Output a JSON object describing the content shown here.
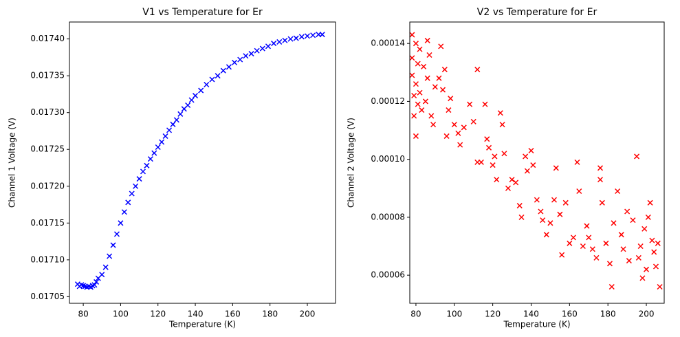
{
  "chart_data": [
    {
      "type": "scatter",
      "title": "V1 vs Temperature for Er",
      "x_label": "Temperature (K)",
      "y_label": "Channel 1 Voltage (V)",
      "marker": "x",
      "xlim": [
        72.6,
        215.1
      ],
      "ylim": [
        0.017041,
        0.017423
      ],
      "xticks": [
        80,
        100,
        120,
        140,
        160,
        180,
        200
      ],
      "yticks": [
        {
          "value": 0.01705,
          "label": "0.01705"
        },
        {
          "value": 0.0171,
          "label": "0.01710"
        },
        {
          "value": 0.01715,
          "label": "0.01715"
        },
        {
          "value": 0.0172,
          "label": "0.01720"
        },
        {
          "value": 0.01725,
          "label": "0.01725"
        },
        {
          "value": 0.0173,
          "label": "0.01730"
        },
        {
          "value": 0.01735,
          "label": "0.01735"
        },
        {
          "value": 0.0174,
          "label": "0.01740"
        }
      ],
      "series": [
        {
          "color": "#0000ff",
          "x": [
            77,
            78,
            79,
            80,
            81,
            82,
            83,
            84,
            85,
            86,
            87,
            88,
            90,
            92,
            94,
            96,
            98,
            100,
            102,
            104,
            106,
            108,
            110,
            112,
            114,
            116,
            118,
            120,
            122,
            124,
            126,
            128,
            130,
            132,
            134,
            136,
            138,
            140,
            143,
            146,
            149,
            152,
            155,
            158,
            161,
            164,
            167,
            170,
            173,
            176,
            179,
            182,
            185,
            188,
            191,
            194,
            197,
            200,
            203,
            206,
            208
          ],
          "values": [
            0.017067,
            0.017064,
            0.017066,
            0.017065,
            0.017064,
            0.017063,
            0.017064,
            0.017063,
            0.017065,
            0.017066,
            0.01707,
            0.017075,
            0.01708,
            0.01709,
            0.017105,
            0.01712,
            0.017135,
            0.01715,
            0.017165,
            0.017178,
            0.01719,
            0.0172,
            0.01721,
            0.01722,
            0.017228,
            0.017237,
            0.017245,
            0.017253,
            0.01726,
            0.017268,
            0.017276,
            0.017284,
            0.01729,
            0.017298,
            0.017305,
            0.01731,
            0.017317,
            0.017323,
            0.01733,
            0.017338,
            0.017345,
            0.01735,
            0.017357,
            0.017362,
            0.017368,
            0.017372,
            0.017377,
            0.01738,
            0.017384,
            0.017387,
            0.01739,
            0.017394,
            0.017396,
            0.017398,
            0.0174,
            0.017401,
            0.017403,
            0.017404,
            0.017405,
            0.017406,
            0.017406
          ]
        }
      ]
    },
    {
      "type": "scatter",
      "title": "V2 vs Temperature for Er",
      "x_label": "Temperature (K)",
      "y_label": "Channel 2 Voltage (V)",
      "marker": "x",
      "xlim": [
        76.8,
        209.3
      ],
      "ylim": [
        5.03e-05,
        0.0001474
      ],
      "xticks": [
        80,
        100,
        120,
        140,
        160,
        180,
        200
      ],
      "yticks": [
        {
          "value": 6e-05,
          "label": "0.00006"
        },
        {
          "value": 8e-05,
          "label": "0.00008"
        },
        {
          "value": 0.0001,
          "label": "0.00010"
        },
        {
          "value": 0.00012,
          "label": "0.00012"
        },
        {
          "value": 0.00014,
          "label": "0.00014"
        }
      ],
      "series": [
        {
          "color": "#ff0000",
          "x": [
            78,
            78,
            78,
            79,
            79,
            80,
            80,
            80,
            81,
            81,
            82,
            82,
            83,
            84,
            85,
            86,
            86,
            87,
            88,
            89,
            90,
            92,
            93,
            94,
            95,
            96,
            97,
            98,
            100,
            102,
            103,
            105,
            108,
            110,
            112,
            112,
            114,
            116,
            117,
            118,
            120,
            121,
            122,
            124,
            125,
            126,
            128,
            130,
            132,
            134,
            135,
            137,
            138,
            140,
            141,
            143,
            145,
            146,
            148,
            150,
            152,
            153,
            155,
            156,
            158,
            160,
            162,
            164,
            165,
            167,
            169,
            170,
            172,
            174,
            176,
            176,
            177,
            179,
            181,
            182,
            183,
            185,
            187,
            188,
            190,
            191,
            193,
            195,
            196,
            197,
            198,
            199,
            200,
            201,
            202,
            203,
            204,
            205,
            206,
            207
          ],
          "values": [
            0.000143,
            0.000135,
            0.000129,
            0.000122,
            0.000115,
            0.00014,
            0.000126,
            0.000108,
            0.000133,
            0.000119,
            0.000138,
            0.000123,
            0.000117,
            0.000132,
            0.00012,
            0.000141,
            0.000128,
            0.000136,
            0.000115,
            0.000112,
            0.000125,
            0.000128,
            0.000139,
            0.000124,
            0.000131,
            0.000108,
            0.000117,
            0.000121,
            0.000112,
            0.000109,
            0.000105,
            0.000111,
            0.000119,
            0.000113,
            0.000131,
            9.9e-05,
            9.9e-05,
            0.000119,
            0.000107,
            0.000104,
            9.8e-05,
            0.000101,
            9.3e-05,
            0.000116,
            0.000112,
            0.000102,
            9e-05,
            9.3e-05,
            9.2e-05,
            8.4e-05,
            8e-05,
            0.000101,
            9.6e-05,
            0.000103,
            9.8e-05,
            8.6e-05,
            8.2e-05,
            7.9e-05,
            7.4e-05,
            7.8e-05,
            8.6e-05,
            9.7e-05,
            8.1e-05,
            6.7e-05,
            8.5e-05,
            7.1e-05,
            7.3e-05,
            9.9e-05,
            8.9e-05,
            7e-05,
            7.7e-05,
            7.3e-05,
            6.9e-05,
            6.6e-05,
            9.7e-05,
            9.3e-05,
            8.5e-05,
            7.1e-05,
            6.4e-05,
            5.6e-05,
            7.8e-05,
            8.9e-05,
            7.4e-05,
            6.9e-05,
            8.2e-05,
            6.5e-05,
            7.9e-05,
            0.000101,
            6.6e-05,
            7e-05,
            5.9e-05,
            7.6e-05,
            6.2e-05,
            8e-05,
            8.5e-05,
            7.2e-05,
            6.8e-05,
            6.3e-05,
            7.1e-05,
            5.6e-05
          ]
        }
      ]
    }
  ]
}
